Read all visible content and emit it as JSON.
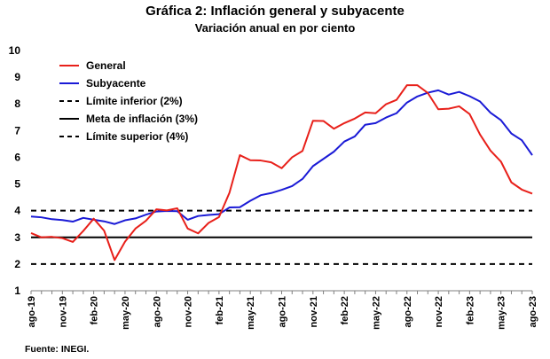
{
  "chart_data": {
    "type": "line",
    "title": "Gráfica 2: Inflación general y subyacente",
    "subtitle": "Variación anual en por ciento",
    "source": "Fuente: INEGI.",
    "ylim": [
      1,
      10
    ],
    "yticks": [
      1,
      2,
      3,
      4,
      5,
      6,
      7,
      8,
      9,
      10
    ],
    "xtick_labels": [
      "ago-19",
      "nov-19",
      "feb-20",
      "may-20",
      "ago-20",
      "nov-20",
      "feb-21",
      "may-21",
      "ago-21",
      "nov-21",
      "feb-22",
      "may-22",
      "ago-22",
      "nov-22",
      "feb-23",
      "may-23",
      "ago-23"
    ],
    "x": [
      "ago-19",
      "sep-19",
      "oct-19",
      "nov-19",
      "dic-19",
      "ene-20",
      "feb-20",
      "mar-20",
      "abr-20",
      "may-20",
      "jun-20",
      "jul-20",
      "ago-20",
      "sep-20",
      "oct-20",
      "nov-20",
      "dic-20",
      "ene-21",
      "feb-21",
      "mar-21",
      "abr-21",
      "may-21",
      "jun-21",
      "jul-21",
      "ago-21",
      "sep-21",
      "oct-21",
      "nov-21",
      "dic-21",
      "ene-22",
      "feb-22",
      "mar-22",
      "abr-22",
      "may-22",
      "jun-22",
      "jul-22",
      "ago-22",
      "sep-22",
      "oct-22",
      "nov-22",
      "dic-22",
      "ene-23",
      "feb-23",
      "mar-23",
      "abr-23",
      "may-23",
      "jun-23",
      "jul-23",
      "ago-23"
    ],
    "series": [
      {
        "name": "General",
        "color": "#e8201a",
        "style": "solid",
        "values": [
          3.16,
          3.0,
          3.02,
          2.97,
          2.83,
          3.24,
          3.7,
          3.25,
          2.15,
          2.84,
          3.33,
          3.62,
          4.05,
          4.01,
          4.09,
          3.33,
          3.15,
          3.54,
          3.76,
          4.67,
          6.08,
          5.89,
          5.88,
          5.81,
          5.59,
          6.0,
          6.24,
          7.37,
          7.36,
          7.07,
          7.28,
          7.45,
          7.68,
          7.65,
          7.99,
          8.15,
          8.7,
          8.7,
          8.41,
          7.8,
          7.82,
          7.91,
          7.62,
          6.85,
          6.25,
          5.84,
          5.06,
          4.79,
          4.64
        ]
      },
      {
        "name": "Subyacente",
        "color": "#1a1ad6",
        "style": "solid",
        "values": [
          3.78,
          3.75,
          3.68,
          3.65,
          3.59,
          3.73,
          3.66,
          3.6,
          3.5,
          3.64,
          3.71,
          3.85,
          3.97,
          3.99,
          3.98,
          3.66,
          3.8,
          3.84,
          3.87,
          4.12,
          4.13,
          4.37,
          4.58,
          4.66,
          4.78,
          4.92,
          5.19,
          5.67,
          5.94,
          6.21,
          6.59,
          6.78,
          7.22,
          7.28,
          7.49,
          7.65,
          8.05,
          8.28,
          8.42,
          8.51,
          8.35,
          8.45,
          8.29,
          8.09,
          7.67,
          7.39,
          6.89,
          6.64,
          6.08
        ]
      },
      {
        "name": "Límite inferior (2%)",
        "color": "#000000",
        "style": "dashed",
        "values": [
          2,
          2,
          2,
          2,
          2,
          2,
          2,
          2,
          2,
          2,
          2,
          2,
          2,
          2,
          2,
          2,
          2,
          2,
          2,
          2,
          2,
          2,
          2,
          2,
          2,
          2,
          2,
          2,
          2,
          2,
          2,
          2,
          2,
          2,
          2,
          2,
          2,
          2,
          2,
          2,
          2,
          2,
          2,
          2,
          2,
          2,
          2,
          2,
          2
        ]
      },
      {
        "name": "Meta de inflación (3%)",
        "color": "#000000",
        "style": "solid",
        "values": [
          3,
          3,
          3,
          3,
          3,
          3,
          3,
          3,
          3,
          3,
          3,
          3,
          3,
          3,
          3,
          3,
          3,
          3,
          3,
          3,
          3,
          3,
          3,
          3,
          3,
          3,
          3,
          3,
          3,
          3,
          3,
          3,
          3,
          3,
          3,
          3,
          3,
          3,
          3,
          3,
          3,
          3,
          3,
          3,
          3,
          3,
          3,
          3,
          3
        ]
      },
      {
        "name": "Límite superior (4%)",
        "color": "#000000",
        "style": "dashed",
        "values": [
          4,
          4,
          4,
          4,
          4,
          4,
          4,
          4,
          4,
          4,
          4,
          4,
          4,
          4,
          4,
          4,
          4,
          4,
          4,
          4,
          4,
          4,
          4,
          4,
          4,
          4,
          4,
          4,
          4,
          4,
          4,
          4,
          4,
          4,
          4,
          4,
          4,
          4,
          4,
          4,
          4,
          4,
          4,
          4,
          4,
          4,
          4,
          4,
          4
        ]
      }
    ],
    "legend_position": "top-left",
    "grid": false
  }
}
